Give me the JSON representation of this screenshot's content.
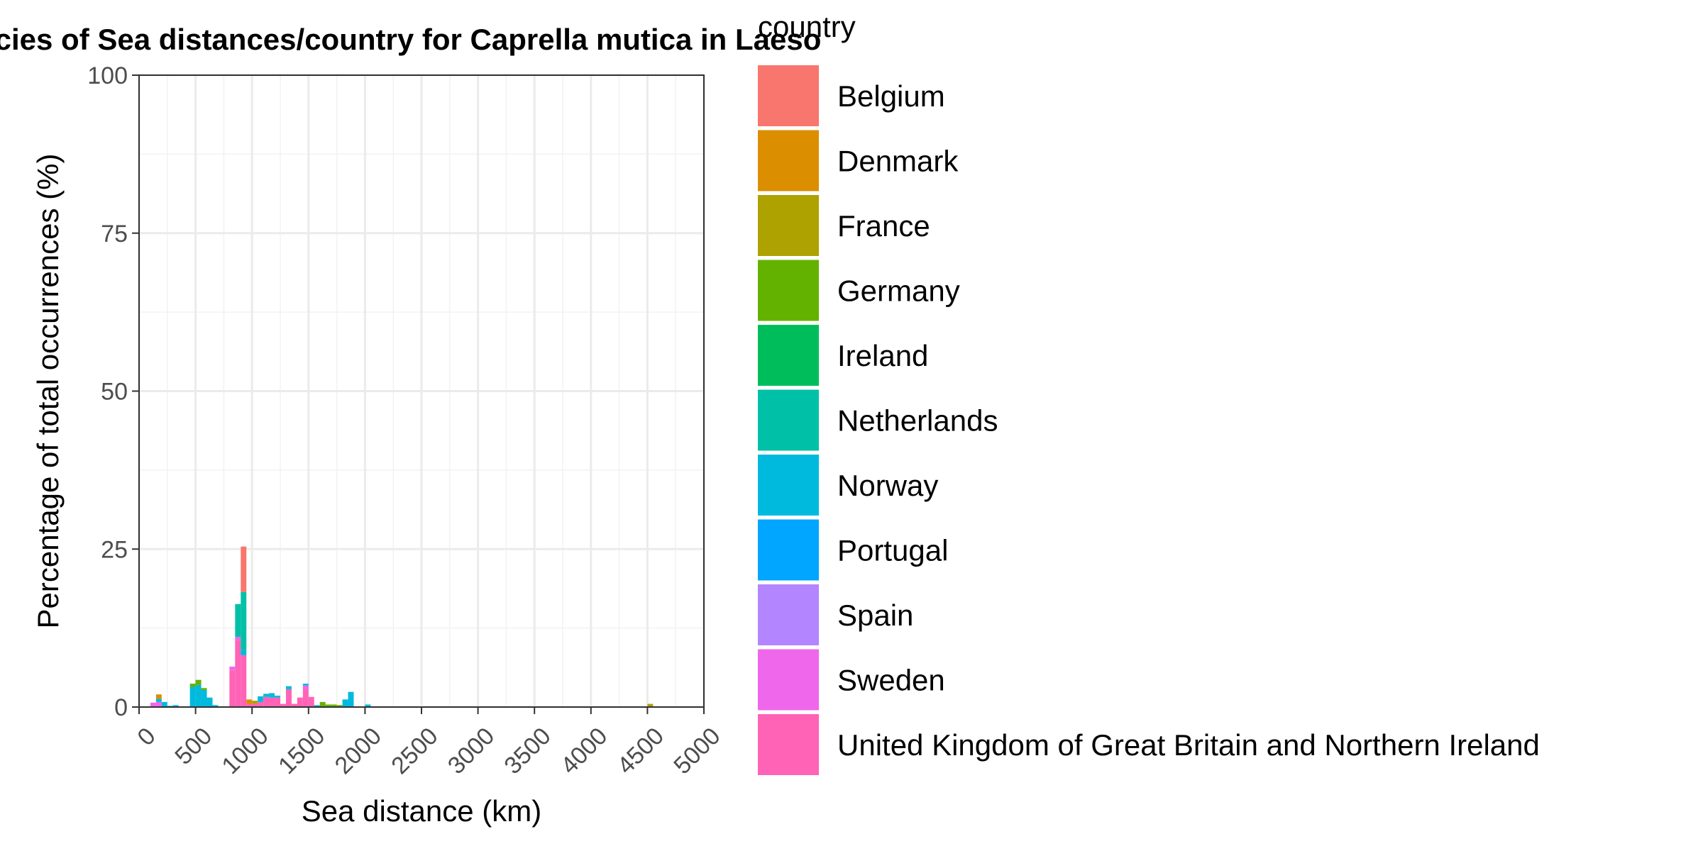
{
  "chart_data": {
    "type": "bar",
    "stacked": true,
    "title": "cies of Sea distances/country for Caprella mutica in Laeso",
    "xlabel": "Sea distance (km)",
    "ylabel": "Percentage of total occurrences (%)",
    "xlim": [
      0,
      5000
    ],
    "ylim": [
      0,
      100
    ],
    "bin_width": 50,
    "x_ticks": [
      "0",
      "500",
      "1000",
      "1500",
      "2000",
      "2500",
      "3000",
      "3500",
      "4000",
      "4500",
      "5000"
    ],
    "y_ticks": [
      "0",
      "25",
      "50",
      "75",
      "100"
    ],
    "grid": true,
    "legend": {
      "title": "country",
      "position": "right",
      "entries": [
        {
          "name": "Belgium",
          "color": "#F8766D"
        },
        {
          "name": "Denmark",
          "color": "#DB8E00"
        },
        {
          "name": "France",
          "color": "#AEA200"
        },
        {
          "name": "Germany",
          "color": "#64B200"
        },
        {
          "name": "Ireland",
          "color": "#00BD5C"
        },
        {
          "name": "Netherlands",
          "color": "#00C1A7"
        },
        {
          "name": "Norway",
          "color": "#00BADE"
        },
        {
          "name": "Portugal",
          "color": "#00A6FF"
        },
        {
          "name": "Spain",
          "color": "#B385FF"
        },
        {
          "name": "Sweden",
          "color": "#EF67EB"
        },
        {
          "name": "United Kingdom of Great Britain and Northern Ireland",
          "color": "#FF63B6"
        }
      ]
    },
    "bars": [
      {
        "x": 125,
        "segments": [
          {
            "country": "Sweden",
            "value": 0.7
          }
        ]
      },
      {
        "x": 175,
        "segments": [
          {
            "country": "Sweden",
            "value": 0.8
          },
          {
            "country": "Norway",
            "value": 0.5
          },
          {
            "country": "Denmark",
            "value": 0.7
          }
        ]
      },
      {
        "x": 225,
        "segments": [
          {
            "country": "Norway",
            "value": 0.8
          }
        ]
      },
      {
        "x": 275,
        "segments": [
          {
            "country": "Norway",
            "value": 0.2
          }
        ]
      },
      {
        "x": 325,
        "segments": [
          {
            "country": "Norway",
            "value": 0.3
          }
        ]
      },
      {
        "x": 475,
        "segments": [
          {
            "country": "Norway",
            "value": 3.2
          },
          {
            "country": "Germany",
            "value": 0.5
          }
        ]
      },
      {
        "x": 525,
        "segments": [
          {
            "country": "Norway",
            "value": 3.5
          },
          {
            "country": "Germany",
            "value": 0.8
          }
        ]
      },
      {
        "x": 575,
        "segments": [
          {
            "country": "Norway",
            "value": 2.7
          },
          {
            "country": "Germany",
            "value": 0.3
          }
        ]
      },
      {
        "x": 625,
        "segments": [
          {
            "country": "Norway",
            "value": 1.5
          }
        ]
      },
      {
        "x": 675,
        "segments": [
          {
            "country": "Norway",
            "value": 0.3
          }
        ]
      },
      {
        "x": 825,
        "segments": [
          {
            "country": "United Kingdom of Great Britain and Northern Ireland",
            "value": 5.8
          },
          {
            "country": "Sweden",
            "value": 0.6
          }
        ]
      },
      {
        "x": 875,
        "segments": [
          {
            "country": "United Kingdom of Great Britain and Northern Ireland",
            "value": 10.5
          },
          {
            "country": "Sweden",
            "value": 0.6
          },
          {
            "country": "Netherlands",
            "value": 5.2
          }
        ]
      },
      {
        "x": 925,
        "segments": [
          {
            "country": "United Kingdom of Great Britain and Northern Ireland",
            "value": 8.2
          },
          {
            "country": "Norway",
            "value": 0.8
          },
          {
            "country": "Netherlands",
            "value": 9.2
          },
          {
            "country": "Belgium",
            "value": 7.2
          }
        ]
      },
      {
        "x": 975,
        "segments": [
          {
            "country": "United Kingdom of Great Britain and Northern Ireland",
            "value": 0.5
          },
          {
            "country": "Denmark",
            "value": 0.7
          }
        ]
      },
      {
        "x": 1025,
        "segments": [
          {
            "country": "United Kingdom of Great Britain and Northern Ireland",
            "value": 0.5
          },
          {
            "country": "France",
            "value": 0.5
          }
        ]
      },
      {
        "x": 1075,
        "segments": [
          {
            "country": "United Kingdom of Great Britain and Northern Ireland",
            "value": 0.8
          },
          {
            "country": "Norway",
            "value": 0.9
          }
        ]
      },
      {
        "x": 1125,
        "segments": [
          {
            "country": "United Kingdom of Great Britain and Northern Ireland",
            "value": 1.6
          },
          {
            "country": "Norway",
            "value": 0.5
          }
        ]
      },
      {
        "x": 1175,
        "segments": [
          {
            "country": "United Kingdom of Great Britain and Northern Ireland",
            "value": 1.5
          },
          {
            "country": "Norway",
            "value": 0.7
          }
        ]
      },
      {
        "x": 1225,
        "segments": [
          {
            "country": "United Kingdom of Great Britain and Northern Ireland",
            "value": 1.5
          },
          {
            "country": "Norway",
            "value": 0.3
          }
        ]
      },
      {
        "x": 1275,
        "segments": [
          {
            "country": "United Kingdom of Great Britain and Northern Ireland",
            "value": 0.5
          }
        ]
      },
      {
        "x": 1325,
        "segments": [
          {
            "country": "United Kingdom of Great Britain and Northern Ireland",
            "value": 2.8
          },
          {
            "country": "Norway",
            "value": 0.5
          }
        ]
      },
      {
        "x": 1375,
        "segments": [
          {
            "country": "United Kingdom of Great Britain and Northern Ireland",
            "value": 0.5
          }
        ]
      },
      {
        "x": 1425,
        "segments": [
          {
            "country": "United Kingdom of Great Britain and Northern Ireland",
            "value": 1.5
          }
        ]
      },
      {
        "x": 1475,
        "segments": [
          {
            "country": "United Kingdom of Great Britain and Northern Ireland",
            "value": 2.8
          },
          {
            "country": "Sweden",
            "value": 0.6
          },
          {
            "country": "Norway",
            "value": 0.3
          }
        ]
      },
      {
        "x": 1525,
        "segments": [
          {
            "country": "United Kingdom of Great Britain and Northern Ireland",
            "value": 1.6
          }
        ]
      },
      {
        "x": 1575,
        "segments": [
          {
            "country": "Norway",
            "value": 0.3
          }
        ]
      },
      {
        "x": 1625,
        "segments": [
          {
            "country": "Germany",
            "value": 0.8
          }
        ]
      },
      {
        "x": 1675,
        "segments": [
          {
            "country": "Germany",
            "value": 0.4
          }
        ]
      },
      {
        "x": 1725,
        "segments": [
          {
            "country": "Germany",
            "value": 0.4
          }
        ]
      },
      {
        "x": 1775,
        "segments": [
          {
            "country": "Germany",
            "value": 0.3
          }
        ]
      },
      {
        "x": 1825,
        "segments": [
          {
            "country": "Norway",
            "value": 1.2
          }
        ]
      },
      {
        "x": 1875,
        "segments": [
          {
            "country": "Norway",
            "value": 2.4
          }
        ]
      },
      {
        "x": 2025,
        "segments": [
          {
            "country": "Norway",
            "value": 0.4
          }
        ]
      },
      {
        "x": 4525,
        "segments": [
          {
            "country": "France",
            "value": 0.5
          }
        ]
      }
    ]
  }
}
